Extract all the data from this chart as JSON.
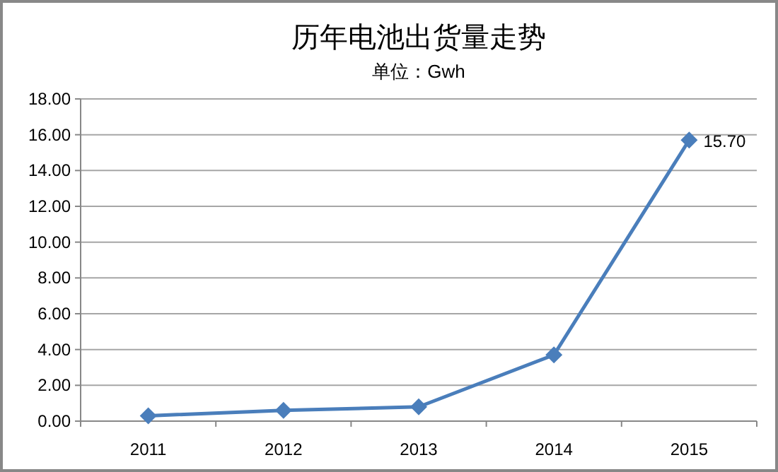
{
  "chart_data": {
    "type": "line",
    "title": "历年电池出货量走势",
    "subtitle": "单位：Gwh",
    "categories": [
      "2011",
      "2012",
      "2013",
      "2014",
      "2015"
    ],
    "series": [
      {
        "color": "#4a7ebb",
        "values": [
          0.3,
          0.6,
          0.8,
          3.7,
          15.7
        ],
        "value_labels": [
          null,
          null,
          null,
          null,
          "15.70"
        ]
      }
    ],
    "ylim": [
      0,
      18
    ],
    "yticks": [
      {
        "value": 0,
        "label": "0.00"
      },
      {
        "value": 2,
        "label": "2.00"
      },
      {
        "value": 4,
        "label": "4.00"
      },
      {
        "value": 6,
        "label": "6.00"
      },
      {
        "value": 8,
        "label": "8.00"
      },
      {
        "value": 10,
        "label": "10.00"
      },
      {
        "value": 12,
        "label": "12.00"
      },
      {
        "value": 14,
        "label": "14.00"
      },
      {
        "value": 16,
        "label": "16.00"
      },
      {
        "value": 18,
        "label": "18.00"
      }
    ],
    "grid": "y",
    "marker": "diamond",
    "line_style": "solid"
  }
}
